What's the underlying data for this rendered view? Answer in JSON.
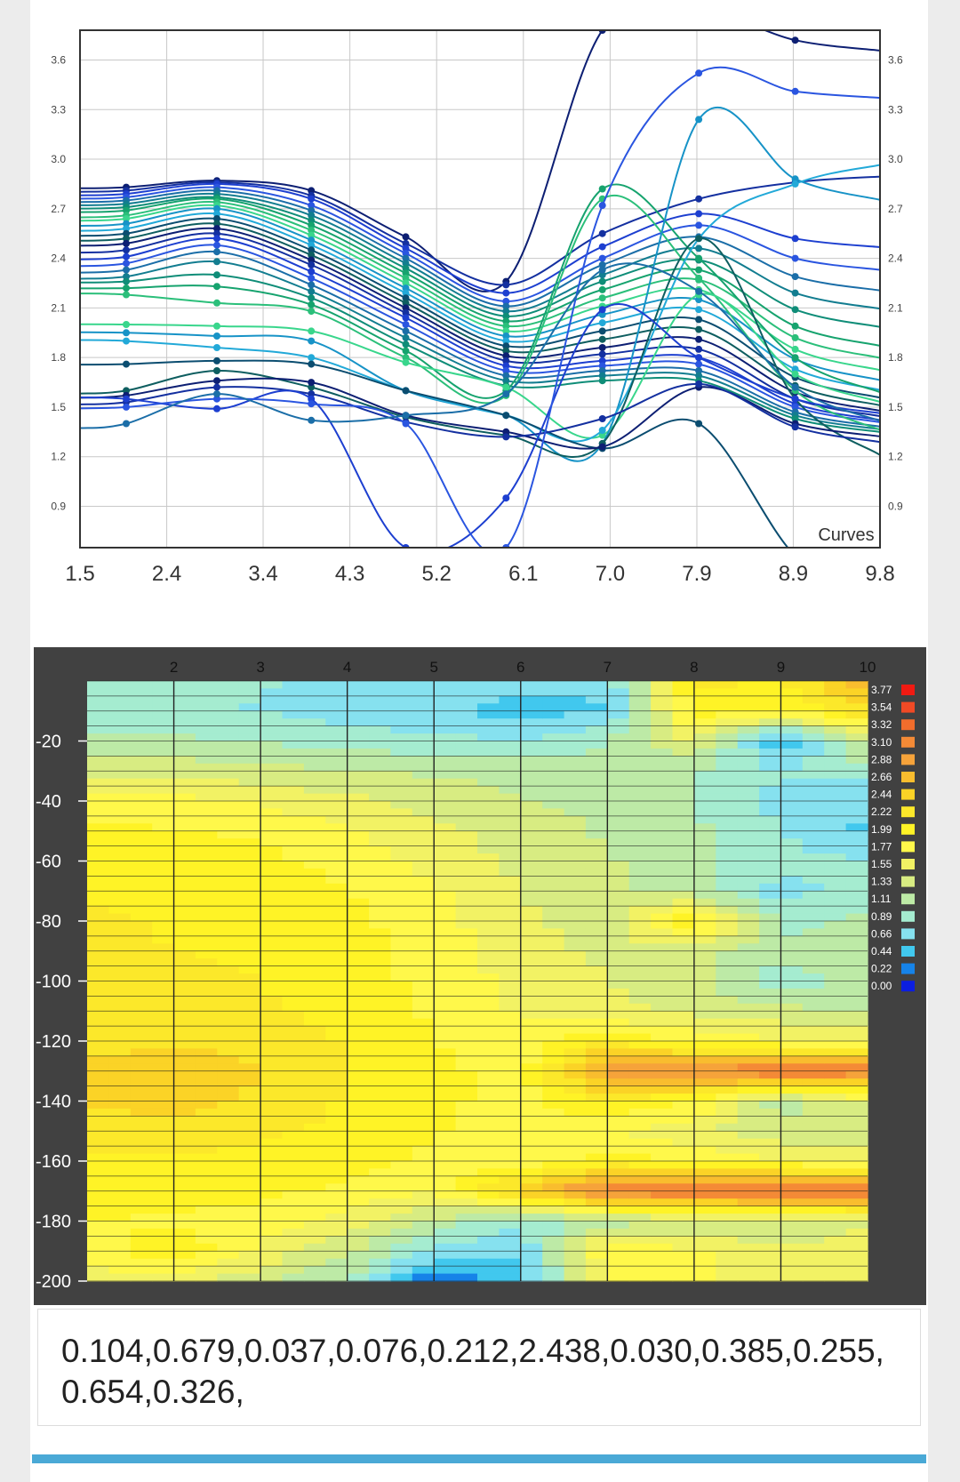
{
  "app": {
    "accent": "#4aa9d6"
  },
  "chart_data": [
    {
      "type": "line",
      "legend_label": "Curves",
      "legend_position": "bottom-right",
      "grid": true,
      "xlim": [
        1.5,
        9.8
      ],
      "ylim": [
        0.65,
        3.78
      ],
      "x_ticks": [
        "1.5",
        "2.4",
        "3.4",
        "4.3",
        "5.2",
        "6.1",
        "7.0",
        "7.9",
        "8.9",
        "9.8"
      ],
      "y_ticks": [
        "0.9",
        "1.2",
        "1.5",
        "1.8",
        "2.1",
        "2.4",
        "2.7",
        "3.0",
        "3.3",
        "3.6"
      ],
      "x": [
        1.98,
        2.92,
        3.9,
        4.88,
        5.92,
        6.92,
        7.92,
        8.92
      ],
      "series": [
        {
          "values": [
            2.83,
            2.87,
            2.81,
            2.53,
            2.26,
            3.78,
            3.9,
            3.72
          ]
        },
        {
          "values": [
            2.81,
            2.86,
            2.78,
            2.49,
            2.24,
            2.55,
            2.76,
            2.86
          ]
        },
        {
          "values": [
            2.79,
            2.85,
            2.76,
            2.46,
            2.19,
            2.47,
            2.67,
            2.52
          ]
        },
        {
          "values": [
            2.77,
            2.83,
            2.72,
            2.43,
            2.14,
            2.4,
            2.6,
            2.4
          ]
        },
        {
          "values": [
            2.75,
            2.81,
            2.69,
            2.4,
            2.11,
            2.36,
            2.53,
            2.29
          ]
        },
        {
          "values": [
            2.73,
            2.79,
            2.66,
            2.37,
            2.08,
            2.3,
            2.46,
            2.19
          ]
        },
        {
          "values": [
            2.71,
            2.77,
            2.63,
            2.34,
            2.05,
            2.26,
            2.39,
            2.09
          ]
        },
        {
          "values": [
            2.69,
            2.76,
            2.6,
            2.31,
            2.02,
            2.21,
            2.33,
            1.99
          ]
        },
        {
          "values": [
            2.66,
            2.74,
            2.57,
            2.28,
            1.99,
            2.16,
            2.27,
            1.92
          ]
        },
        {
          "values": [
            2.64,
            2.72,
            2.54,
            2.25,
            1.96,
            2.11,
            2.21,
            1.85
          ]
        },
        {
          "values": [
            2.61,
            2.7,
            2.51,
            2.22,
            1.93,
            2.06,
            2.15,
            1.79
          ]
        },
        {
          "values": [
            2.58,
            2.67,
            2.48,
            2.19,
            1.9,
            2.01,
            2.09,
            1.73
          ]
        },
        {
          "values": [
            2.55,
            2.64,
            2.45,
            2.16,
            1.87,
            1.96,
            2.03,
            1.68
          ]
        },
        {
          "values": [
            2.52,
            2.61,
            2.42,
            2.13,
            1.84,
            1.91,
            1.97,
            1.63
          ]
        },
        {
          "values": [
            2.49,
            2.58,
            2.39,
            2.1,
            1.81,
            1.86,
            1.91,
            1.59
          ]
        },
        {
          "values": [
            2.45,
            2.55,
            2.36,
            2.07,
            1.78,
            1.82,
            1.85,
            1.55
          ]
        },
        {
          "values": [
            2.41,
            2.52,
            2.32,
            2.04,
            1.75,
            1.78,
            1.8,
            1.52
          ]
        },
        {
          "values": [
            2.37,
            2.48,
            2.28,
            2.0,
            1.72,
            1.75,
            1.76,
            1.5
          ]
        },
        {
          "values": [
            2.33,
            2.44,
            2.24,
            1.96,
            1.69,
            1.72,
            1.72,
            1.47
          ]
        },
        {
          "values": [
            2.29,
            2.38,
            2.2,
            1.92,
            1.66,
            1.69,
            1.69,
            1.45
          ]
        },
        {
          "values": [
            2.26,
            2.3,
            2.16,
            1.88,
            1.63,
            1.66,
            1.66,
            1.43
          ]
        },
        {
          "values": [
            2.22,
            2.23,
            2.12,
            1.84,
            1.6,
            2.82,
            2.4,
            1.8
          ]
        },
        {
          "values": [
            2.18,
            2.13,
            2.08,
            1.8,
            1.57,
            2.76,
            2.28,
            1.6
          ]
        },
        {
          "values": [
            2.0,
            1.99,
            1.96,
            1.77,
            1.62,
            1.33,
            2.18,
            1.7
          ]
        },
        {
          "values": [
            1.95,
            1.93,
            1.9,
            1.6,
            1.45,
            1.28,
            3.24,
            2.88
          ]
        },
        {
          "values": [
            1.9,
            1.86,
            1.8,
            1.6,
            1.45,
            1.36,
            2.52,
            2.85
          ]
        },
        {
          "values": [
            1.76,
            1.78,
            1.76,
            1.6,
            1.45,
            1.25,
            1.4,
            0.6
          ]
        },
        {
          "values": [
            1.6,
            1.72,
            1.62,
            1.44,
            1.33,
            1.28,
            2.52,
            1.55
          ]
        },
        {
          "values": [
            1.57,
            1.66,
            1.65,
            1.45,
            1.35,
            1.26,
            1.62,
            1.4
          ]
        },
        {
          "values": [
            1.53,
            1.62,
            1.58,
            1.41,
            1.32,
            1.43,
            1.64,
            1.38
          ]
        },
        {
          "values": [
            1.55,
            1.49,
            1.55,
            0.65,
            0.95,
            2.09,
            1.8,
            1.55
          ]
        },
        {
          "values": [
            1.5,
            1.55,
            1.52,
            1.4,
            0.65,
            2.72,
            3.52,
            3.41
          ]
        },
        {
          "values": [
            1.4,
            1.58,
            1.42,
            1.45,
            1.58,
            2.33,
            2.2,
            1.62
          ]
        }
      ]
    },
    {
      "type": "heatmap",
      "x_ticks": [
        "2",
        "3",
        "4",
        "5",
        "6",
        "7",
        "8",
        "9",
        "10"
      ],
      "y_ticks": [
        "-20",
        "-40",
        "-60",
        "-80",
        "-100",
        "-120",
        "-140",
        "-160",
        "-180",
        "-200"
      ],
      "xlim": [
        1,
        10
      ],
      "ylim": [
        -200,
        0
      ],
      "color_scale": [
        "3.77",
        "3.54",
        "3.32",
        "3.10",
        "2.88",
        "2.66",
        "2.44",
        "2.22",
        "1.99",
        "1.77",
        "1.55",
        "1.33",
        "1.11",
        "0.89",
        "0.66",
        "0.44",
        "0.22",
        "0.00"
      ],
      "colors": [
        "#f01a12",
        "#f14a25",
        "#f26d2c",
        "#f48a36",
        "#f6a33a",
        "#f9bd2e",
        "#fbd326",
        "#fce82a",
        "#fff326",
        "#fff84a",
        "#f2f264",
        "#d8ec82",
        "#bdeaa6",
        "#a5ecd0",
        "#86e1ef",
        "#41c8ee",
        "#1683e8",
        "#0b1ee0"
      ],
      "x": [
        1,
        2,
        3,
        4,
        5,
        6,
        7,
        8,
        9,
        10
      ],
      "y": [
        0,
        -10,
        -20,
        -30,
        -40,
        -50,
        -60,
        -70,
        -80,
        -90,
        -100,
        -110,
        -120,
        -130,
        -140,
        -150,
        -160,
        -170,
        -180,
        -190,
        -200
      ],
      "values": [
        [
          0.95,
          0.92,
          0.9,
          0.88,
          0.85,
          0.75,
          0.7,
          2.3,
          2.2,
          2.8
        ],
        [
          0.92,
          0.9,
          0.88,
          0.8,
          0.7,
          0.55,
          0.65,
          2.1,
          2.0,
          2.4
        ],
        [
          1.2,
          1.15,
          1.1,
          1.0,
          0.95,
          0.9,
          1.1,
          1.6,
          0.4,
          1.5
        ],
        [
          1.5,
          1.45,
          1.4,
          1.35,
          1.3,
          1.25,
          1.2,
          1.1,
          0.9,
          1.0
        ],
        [
          1.9,
          1.85,
          1.75,
          1.6,
          1.45,
          1.35,
          1.25,
          1.1,
          0.8,
          0.7
        ],
        [
          2.05,
          2.0,
          1.95,
          1.8,
          1.6,
          1.45,
          1.3,
          1.15,
          0.9,
          0.6
        ],
        [
          2.15,
          2.1,
          2.05,
          1.9,
          1.7,
          1.5,
          1.35,
          1.15,
          0.95,
          0.9
        ],
        [
          2.2,
          2.18,
          2.15,
          2.0,
          1.8,
          1.55,
          1.4,
          1.2,
          0.8,
          1.0
        ],
        [
          2.25,
          2.2,
          2.18,
          2.05,
          1.85,
          1.6,
          1.45,
          2.2,
          1.0,
          1.2
        ],
        [
          2.25,
          2.22,
          2.2,
          2.1,
          1.9,
          1.65,
          1.5,
          1.4,
          1.2,
          1.25
        ],
        [
          2.28,
          2.25,
          2.22,
          2.1,
          1.92,
          1.7,
          1.55,
          1.45,
          0.9,
          1.3
        ],
        [
          2.3,
          2.3,
          2.25,
          2.15,
          1.95,
          1.75,
          1.6,
          1.5,
          1.4,
          1.3
        ],
        [
          2.35,
          2.4,
          2.35,
          2.2,
          2.0,
          1.8,
          2.2,
          1.9,
          1.8,
          1.7
        ],
        [
          2.5,
          2.6,
          2.45,
          2.25,
          2.05,
          1.9,
          3.1,
          3.2,
          3.4,
          3.3
        ],
        [
          2.45,
          2.55,
          2.4,
          2.2,
          2.05,
          1.9,
          2.2,
          2.0,
          1.2,
          1.6
        ],
        [
          2.3,
          2.35,
          2.25,
          2.15,
          2.0,
          1.9,
          1.8,
          1.6,
          1.4,
          1.4
        ],
        [
          2.2,
          2.2,
          2.15,
          2.05,
          1.95,
          1.85,
          2.1,
          1.95,
          1.8,
          1.7
        ],
        [
          2.1,
          2.1,
          2.05,
          1.95,
          1.8,
          2.6,
          3.3,
          3.4,
          3.5,
          3.5
        ],
        [
          2.0,
          1.95,
          1.9,
          1.7,
          1.3,
          0.9,
          1.2,
          1.4,
          1.3,
          1.5
        ],
        [
          1.8,
          2.2,
          1.7,
          1.4,
          0.8,
          0.7,
          2.0,
          1.8,
          1.6,
          1.7
        ],
        [
          1.7,
          1.6,
          1.4,
          1.1,
          0.2,
          0.6,
          1.8,
          1.8,
          1.6,
          1.8
        ]
      ]
    }
  ],
  "output": {
    "values_text": "0.104,0.679,0.037,0.076,0.212,2.438,0.030,0.385,0.255,0.654,0.326,"
  }
}
